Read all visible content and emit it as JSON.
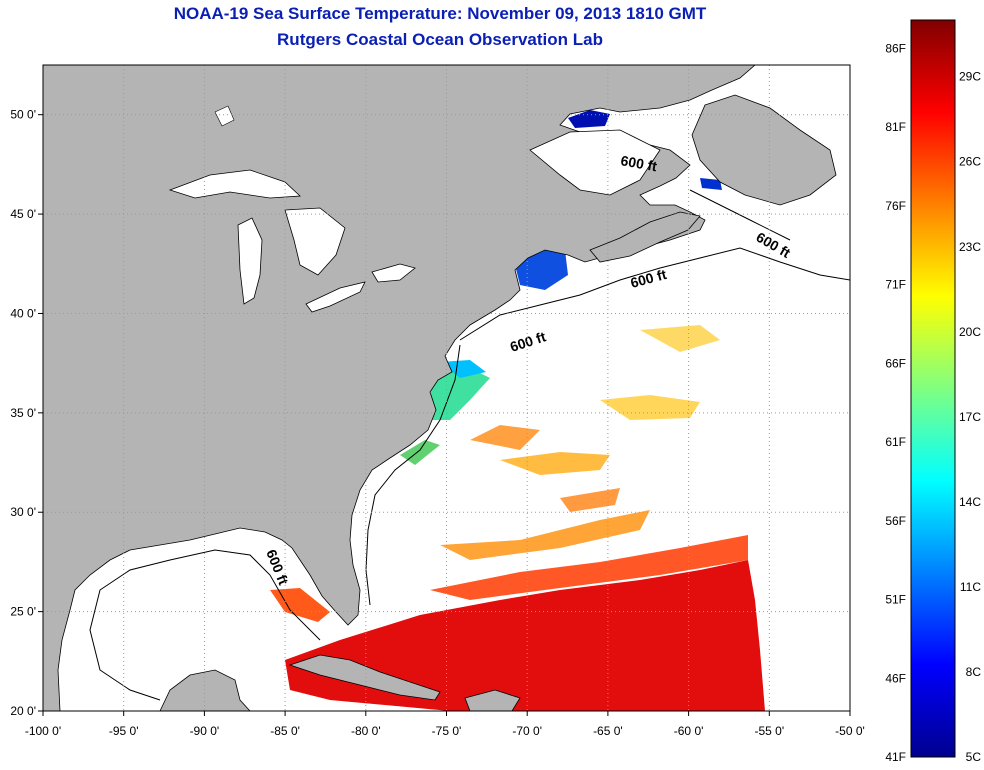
{
  "title": "NOAA-19 Sea Surface Temperature:  November 09, 2013 1810 GMT",
  "subtitle": "Rutgers Coastal Ocean Observation Lab",
  "colors": {
    "title": "#0a1fb4",
    "land": "#b4b4b4",
    "ocean": "#ffffff",
    "grid": "#9a9a9a"
  },
  "map": {
    "lon_range": [
      -100,
      -50
    ],
    "lat_range": [
      20,
      52.5
    ],
    "lon_ticks": [
      "-100 0'",
      "-95 0'",
      "-90 0'",
      "-85 0'",
      "-80 0'",
      "-75 0'",
      "-70 0'",
      "-65 0'",
      "-60 0'",
      "-55 0'",
      "-50 0'"
    ],
    "lon_values": [
      -100,
      -95,
      -90,
      -85,
      -80,
      -75,
      -70,
      -65,
      -60,
      -55,
      -50
    ],
    "lat_ticks": [
      "20 0'",
      "25 0'",
      "30 0'",
      "35 0'",
      "40 0'",
      "45 0'",
      "50 0'"
    ],
    "lat_values": [
      20,
      25,
      30,
      35,
      40,
      45,
      50
    ],
    "grid": "dotted",
    "contour_label": "600 ft",
    "contour_labels": [
      "600 ft",
      "600 ft",
      "600 ft",
      "600 ft",
      "600 ft"
    ]
  },
  "colorbar": {
    "placement": "right",
    "temp_c_range": [
      5,
      31
    ],
    "fahrenheit_labels": [
      "86F",
      "81F",
      "76F",
      "71F",
      "66F",
      "61F",
      "56F",
      "51F",
      "46F",
      "41F"
    ],
    "fahrenheit_values": [
      86,
      81,
      76,
      71,
      66,
      61,
      56,
      51,
      46,
      41
    ],
    "celsius_labels": [
      "29C",
      "26C",
      "23C",
      "20C",
      "17C",
      "14C",
      "11C",
      "8C",
      "5C"
    ],
    "celsius_values": [
      29,
      26,
      23,
      20,
      17,
      14,
      11,
      8,
      5
    ],
    "colormap": [
      "#00008f",
      "#0000ff",
      "#0080ff",
      "#00ffff",
      "#80ff80",
      "#ffff00",
      "#ff8000",
      "#ff0000",
      "#800000"
    ]
  }
}
